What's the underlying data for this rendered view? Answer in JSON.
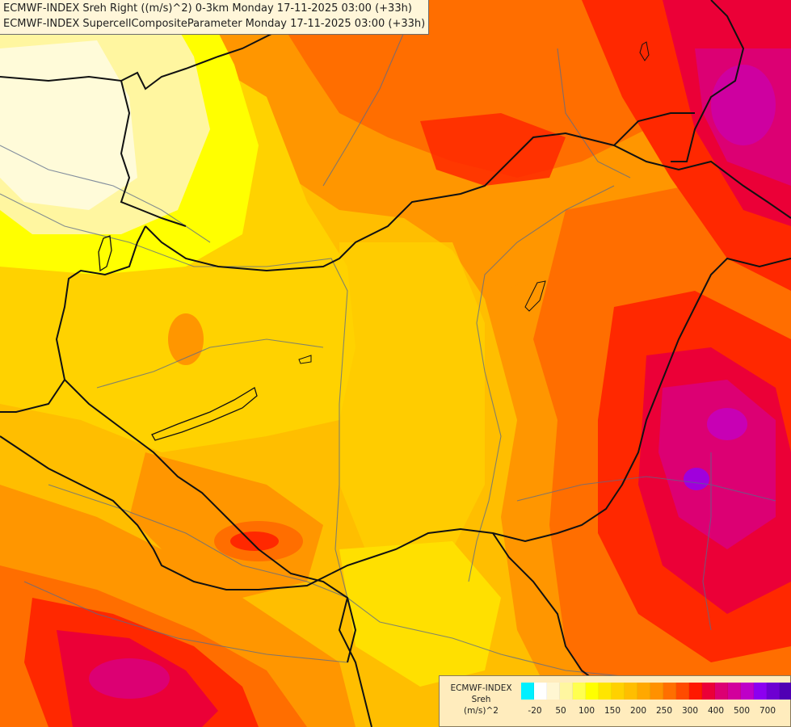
{
  "header": {
    "line1": "ECMWF-INDEX Sreh Right ((m/s)^2) 0-3km Monday 17-11-2025 03:00 (+33h)",
    "line2": "ECMWF-INDEX SupercellCompositeParameter Monday 17-11-2025 03:00 (+33h)"
  },
  "legend": {
    "line1": "ECMWF-INDEX",
    "line2": "Sreh",
    "line3": "(m/s)^2",
    "colors": [
      "#00f0ff",
      "#ffffff",
      "#fff6d2",
      "#fff6a0",
      "#ffff50",
      "#ffff00",
      "#ffe500",
      "#ffd100",
      "#ffbe00",
      "#ffa800",
      "#ff9100",
      "#ff6f00",
      "#ff4b00",
      "#ff1900",
      "#eb0037",
      "#dc0073",
      "#d2009c",
      "#be00c8",
      "#8c00f0",
      "#6e00d2",
      "#5000b4",
      "#32008c"
    ],
    "labels": [
      "-20",
      "50",
      "100",
      "150",
      "200",
      "250",
      "300",
      "400",
      "500",
      "700"
    ]
  },
  "colors": {
    "pale": "#fffbd9",
    "yellow": "#ffff00",
    "gold": "#ffd200",
    "amber": "#ffbe00",
    "orange": "#ff9600",
    "darkorange": "#ff6e00",
    "red": "#ff2800",
    "crimson": "#eb0037",
    "magenta": "#dc0073",
    "purple": "#c800b4",
    "violet": "#a000dc"
  }
}
